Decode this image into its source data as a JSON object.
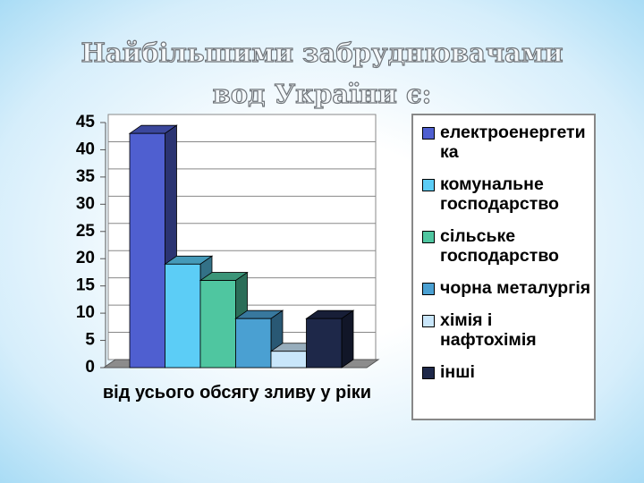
{
  "chart_data": {
    "type": "bar3d",
    "title": "Найбільшими забруднювачами вод України є:",
    "categories": [
      "від усього обсягу зливу у ріки"
    ],
    "series": [
      {
        "name": "електроенергетика",
        "color": "#4f5fd0",
        "values": [
          43
        ]
      },
      {
        "name": "комунальне господарство",
        "color": "#5ccdf6",
        "values": [
          19
        ]
      },
      {
        "name": "сільське господарство",
        "color": "#4fc6a0",
        "values": [
          16
        ]
      },
      {
        "name": "чорна металургія",
        "color": "#4aa0d2",
        "values": [
          9
        ]
      },
      {
        "name": "хімія і нафтохімія",
        "color": "#c9e6fa",
        "values": [
          3
        ]
      },
      {
        "name": "інші",
        "color": "#1e2849",
        "values": [
          9
        ]
      }
    ],
    "ylim": [
      0,
      45
    ],
    "yticks": [
      0,
      5,
      10,
      15,
      20,
      25,
      30,
      35,
      40,
      45
    ],
    "grid": true,
    "legend": "right"
  }
}
